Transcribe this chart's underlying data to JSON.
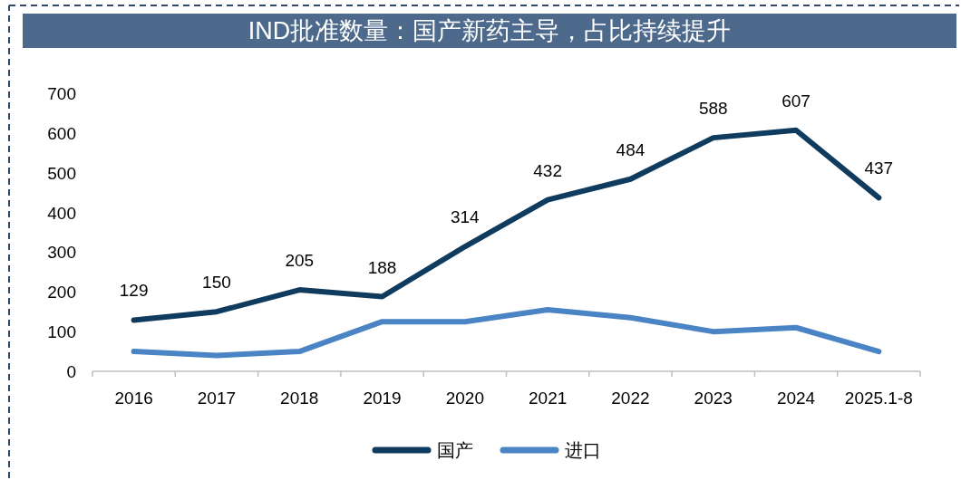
{
  "chart_data": {
    "type": "line",
    "title": "IND批准数量：国产新药主导，占比持续提升",
    "categories": [
      "2016",
      "2017",
      "2018",
      "2019",
      "2020",
      "2021",
      "2022",
      "2023",
      "2024",
      "2025.1-8"
    ],
    "series": [
      {
        "name": "国产",
        "color": "#0f3b5f",
        "values": [
          129,
          150,
          205,
          188,
          314,
          432,
          484,
          588,
          607,
          437
        ],
        "value_labels": [
          "129",
          "150",
          "205",
          "188",
          "314",
          "432",
          "484",
          "588",
          "607",
          "437"
        ]
      },
      {
        "name": "进口",
        "color": "#4a84c4",
        "values": [
          50,
          40,
          50,
          125,
          125,
          155,
          135,
          100,
          110,
          50
        ]
      }
    ],
    "ylim": [
      0,
      700
    ],
    "yticks": [
      0,
      100,
      200,
      300,
      400,
      500,
      600,
      700
    ],
    "legend": "bottom",
    "marker": "none"
  }
}
